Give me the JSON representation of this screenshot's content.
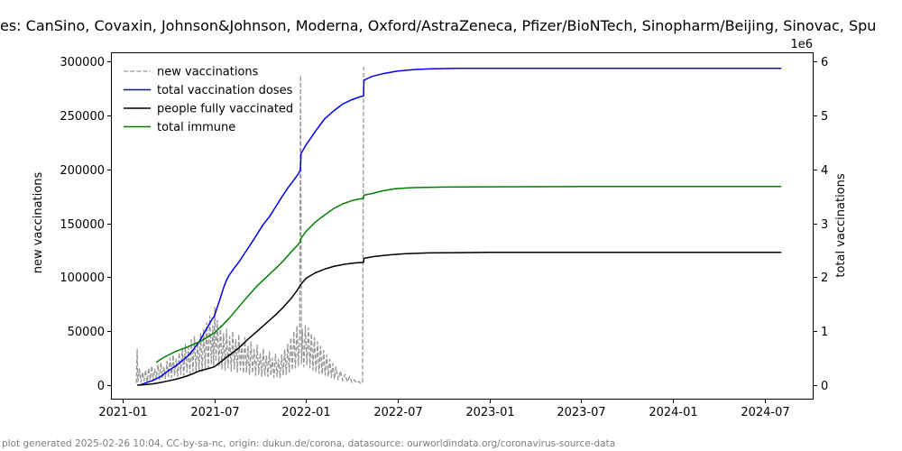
{
  "title_visible": "es: CanSino, Covaxin, Johnson&Johnson, Moderna, Oxford/AstraZeneca, Pfizer/BioNTech, Sinopharm/Beijing, Sinovac, Spu",
  "footer": "plot generated 2025-02-26 10:04, CC-by-sa-nc, origin: dukun.de/corona, datasource: ourworldindata.org/coronavirus-source-data",
  "chart_data": {
    "type": "line",
    "x_axis": {
      "unit": "months since 2021-01-01",
      "tick_months": [
        0,
        6,
        12,
        18,
        24,
        30,
        36,
        42
      ],
      "tick_labels": [
        "2021-01",
        "2021-07",
        "2022-01",
        "2022-07",
        "2023-01",
        "2023-07",
        "2024-01",
        "2024-07"
      ],
      "range_months": [
        -0.77,
        45.24
      ]
    },
    "y_left": {
      "label": "new vaccinations",
      "tick_values": [
        0,
        50000,
        100000,
        150000,
        200000,
        250000,
        300000
      ],
      "tick_labels": [
        "0",
        "50000",
        "100000",
        "150000",
        "200000",
        "250000",
        "300000"
      ],
      "range": [
        -13370,
        308350
      ],
      "grid": false
    },
    "y_right": {
      "label": "total vaccinations",
      "offset_text": "1e6",
      "tick_values": [
        0,
        1000000,
        2000000,
        3000000,
        4000000,
        5000000,
        6000000
      ],
      "tick_labels": [
        "0",
        "1",
        "2",
        "3",
        "4",
        "5",
        "6"
      ],
      "range": [
        -267000,
        6168000
      ]
    },
    "legend": {
      "position": "upper left",
      "frame": false
    },
    "series": [
      {
        "name": "new vaccinations",
        "axis": "left",
        "color": "#969696",
        "dashed": true,
        "linewidth": 1.3,
        "points": [
          [
            0.9,
            2000
          ],
          [
            0.95,
            33000
          ],
          [
            1.0,
            3000
          ],
          [
            1.1,
            15000
          ],
          [
            1.2,
            2500
          ],
          [
            1.3,
            12000
          ],
          [
            1.4,
            4000
          ],
          [
            1.5,
            14000
          ],
          [
            1.6,
            3000
          ],
          [
            1.7,
            16000
          ],
          [
            1.8,
            5000
          ],
          [
            1.9,
            18000
          ],
          [
            2.0,
            4000
          ],
          [
            2.1,
            15000
          ],
          [
            2.2,
            6000
          ],
          [
            2.3,
            19000
          ],
          [
            2.4,
            5000
          ],
          [
            2.5,
            21000
          ],
          [
            2.6,
            7000
          ],
          [
            2.7,
            17000
          ],
          [
            2.8,
            6000
          ],
          [
            2.9,
            22000
          ],
          [
            3.0,
            8000
          ],
          [
            3.1,
            25000
          ],
          [
            3.2,
            7000
          ],
          [
            3.3,
            28000
          ],
          [
            3.4,
            9000
          ],
          [
            3.5,
            24000
          ],
          [
            3.6,
            8000
          ],
          [
            3.7,
            30000
          ],
          [
            3.8,
            10000
          ],
          [
            3.9,
            34000
          ],
          [
            4.0,
            9000
          ],
          [
            4.1,
            38000
          ],
          [
            4.2,
            12000
          ],
          [
            4.3,
            35000
          ],
          [
            4.4,
            11000
          ],
          [
            4.5,
            42000
          ],
          [
            4.6,
            13000
          ],
          [
            4.7,
            45000
          ],
          [
            4.8,
            12000
          ],
          [
            4.9,
            40000
          ],
          [
            5.0,
            14000
          ],
          [
            5.1,
            48000
          ],
          [
            5.2,
            13000
          ],
          [
            5.3,
            52000
          ],
          [
            5.4,
            15000
          ],
          [
            5.5,
            58000
          ],
          [
            5.6,
            16000
          ],
          [
            5.7,
            64000
          ],
          [
            5.8,
            20000
          ],
          [
            5.9,
            55000
          ],
          [
            5.95,
            18000
          ],
          [
            6.03,
            72000
          ],
          [
            6.1,
            22000
          ],
          [
            6.2,
            60000
          ],
          [
            6.3,
            18000
          ],
          [
            6.4,
            55000
          ],
          [
            6.5,
            15000
          ],
          [
            6.6,
            48000
          ],
          [
            6.7,
            14000
          ],
          [
            6.8,
            52000
          ],
          [
            6.9,
            16000
          ],
          [
            7.0,
            45000
          ],
          [
            7.1,
            13000
          ],
          [
            7.2,
            50000
          ],
          [
            7.3,
            15000
          ],
          [
            7.4,
            42000
          ],
          [
            7.5,
            12000
          ],
          [
            7.6,
            47000
          ],
          [
            7.7,
            14000
          ],
          [
            7.8,
            38000
          ],
          [
            7.9,
            11000
          ],
          [
            8.0,
            44000
          ],
          [
            8.1,
            12000
          ],
          [
            8.2,
            36000
          ],
          [
            8.3,
            10000
          ],
          [
            8.4,
            40000
          ],
          [
            8.5,
            11000
          ],
          [
            8.6,
            33000
          ],
          [
            8.7,
            9000
          ],
          [
            8.8,
            37000
          ],
          [
            8.9,
            10000
          ],
          [
            9.0,
            30000
          ],
          [
            9.1,
            8000
          ],
          [
            9.2,
            34000
          ],
          [
            9.3,
            9000
          ],
          [
            9.4,
            27000
          ],
          [
            9.5,
            8000
          ],
          [
            9.6,
            31000
          ],
          [
            9.7,
            9000
          ],
          [
            9.8,
            25000
          ],
          [
            9.9,
            7000
          ],
          [
            10.0,
            29000
          ],
          [
            10.1,
            8000
          ],
          [
            10.2,
            24000
          ],
          [
            10.3,
            7000
          ],
          [
            10.4,
            28000
          ],
          [
            10.5,
            9000
          ],
          [
            10.6,
            33000
          ],
          [
            10.7,
            10000
          ],
          [
            10.8,
            38000
          ],
          [
            10.9,
            12000
          ],
          [
            11.0,
            44000
          ],
          [
            11.1,
            14000
          ],
          [
            11.2,
            50000
          ],
          [
            11.3,
            16000
          ],
          [
            11.4,
            55000
          ],
          [
            11.5,
            18000
          ],
          [
            11.58,
            45000
          ],
          [
            11.64,
            287000
          ],
          [
            11.7,
            20000
          ],
          [
            11.75,
            52000
          ],
          [
            11.85,
            17000
          ],
          [
            11.95,
            55000
          ],
          [
            12.05,
            19000
          ],
          [
            12.15,
            53000
          ],
          [
            12.25,
            16000
          ],
          [
            12.35,
            48000
          ],
          [
            12.45,
            14000
          ],
          [
            12.55,
            44000
          ],
          [
            12.65,
            12000
          ],
          [
            12.75,
            40000
          ],
          [
            12.85,
            11000
          ],
          [
            12.95,
            36000
          ],
          [
            13.05,
            10000
          ],
          [
            13.15,
            32000
          ],
          [
            13.25,
            9000
          ],
          [
            13.35,
            28000
          ],
          [
            13.45,
            8000
          ],
          [
            13.55,
            24000
          ],
          [
            13.65,
            7000
          ],
          [
            13.75,
            20000
          ],
          [
            13.85,
            6000
          ],
          [
            13.95,
            17000
          ],
          [
            14.1,
            5000
          ],
          [
            14.25,
            13000
          ],
          [
            14.4,
            4000
          ],
          [
            14.55,
            10000
          ],
          [
            14.7,
            3000
          ],
          [
            14.85,
            8000
          ],
          [
            15.0,
            2500
          ],
          [
            15.15,
            5000
          ],
          [
            15.3,
            2000
          ],
          [
            15.45,
            3500
          ],
          [
            15.6,
            1500
          ],
          [
            15.7,
            2500
          ],
          [
            15.77,
            295000
          ]
        ]
      },
      {
        "name": "total vaccination doses",
        "axis": "right",
        "color": "#0000ee",
        "dashed": false,
        "linewidth": 1.5,
        "points": [
          [
            1.12,
            0
          ],
          [
            1.5,
            40000
          ],
          [
            2.0,
            90000
          ],
          [
            2.5,
            160000
          ],
          [
            3.0,
            270000
          ],
          [
            3.5,
            360000
          ],
          [
            4.0,
            480000
          ],
          [
            4.3,
            550000
          ],
          [
            4.6,
            650000
          ],
          [
            5.0,
            800000
          ],
          [
            5.3,
            950000
          ],
          [
            5.6,
            1100000
          ],
          [
            5.8,
            1200000
          ],
          [
            6.0,
            1280000
          ],
          [
            6.2,
            1450000
          ],
          [
            6.4,
            1620000
          ],
          [
            6.6,
            1800000
          ],
          [
            6.8,
            1950000
          ],
          [
            7.0,
            2050000
          ],
          [
            7.3,
            2170000
          ],
          [
            7.6,
            2280000
          ],
          [
            8.0,
            2450000
          ],
          [
            8.4,
            2620000
          ],
          [
            8.8,
            2800000
          ],
          [
            9.2,
            2980000
          ],
          [
            9.6,
            3120000
          ],
          [
            10.0,
            3300000
          ],
          [
            10.4,
            3480000
          ],
          [
            10.8,
            3650000
          ],
          [
            11.2,
            3800000
          ],
          [
            11.5,
            3920000
          ],
          [
            11.63,
            3990000
          ],
          [
            11.67,
            4290000
          ],
          [
            12.0,
            4450000
          ],
          [
            12.6,
            4700000
          ],
          [
            13.2,
            4930000
          ],
          [
            13.8,
            5080000
          ],
          [
            14.4,
            5210000
          ],
          [
            15.0,
            5290000
          ],
          [
            15.5,
            5340000
          ],
          [
            15.76,
            5360000
          ],
          [
            15.79,
            5650000
          ],
          [
            16.3,
            5720000
          ],
          [
            17.0,
            5770000
          ],
          [
            18.0,
            5820000
          ],
          [
            19.0,
            5845000
          ],
          [
            20.0,
            5860000
          ],
          [
            22.0,
            5870000
          ],
          [
            26.0,
            5870000
          ],
          [
            32.0,
            5870000
          ],
          [
            38.0,
            5870000
          ],
          [
            43.1,
            5870000
          ]
        ]
      },
      {
        "name": "people fully vaccinated",
        "axis": "right",
        "color": "#000000",
        "dashed": false,
        "linewidth": 1.5,
        "points": [
          [
            0.95,
            0
          ],
          [
            1.5,
            10000
          ],
          [
            2.0,
            25000
          ],
          [
            2.5,
            50000
          ],
          [
            3.0,
            80000
          ],
          [
            3.5,
            110000
          ],
          [
            4.0,
            150000
          ],
          [
            4.5,
            200000
          ],
          [
            5.0,
            260000
          ],
          [
            5.5,
            300000
          ],
          [
            6.0,
            340000
          ],
          [
            6.5,
            450000
          ],
          [
            7.0,
            560000
          ],
          [
            7.6,
            690000
          ],
          [
            8.2,
            850000
          ],
          [
            8.8,
            1000000
          ],
          [
            9.4,
            1150000
          ],
          [
            10.0,
            1300000
          ],
          [
            10.5,
            1440000
          ],
          [
            11.0,
            1600000
          ],
          [
            11.4,
            1750000
          ],
          [
            11.7,
            1880000
          ],
          [
            12.0,
            1980000
          ],
          [
            12.6,
            2080000
          ],
          [
            13.2,
            2150000
          ],
          [
            13.8,
            2200000
          ],
          [
            14.5,
            2240000
          ],
          [
            15.2,
            2265000
          ],
          [
            15.76,
            2275000
          ],
          [
            15.79,
            2350000
          ],
          [
            16.5,
            2385000
          ],
          [
            17.5,
            2415000
          ],
          [
            18.5,
            2435000
          ],
          [
            20.0,
            2450000
          ],
          [
            22.0,
            2455000
          ],
          [
            24.0,
            2460000
          ],
          [
            30.0,
            2460000
          ],
          [
            38.0,
            2460000
          ],
          [
            43.1,
            2460000
          ]
        ]
      },
      {
        "name": "total immune",
        "axis": "right",
        "color": "#008000",
        "dashed": false,
        "linewidth": 1.5,
        "points": [
          [
            2.19,
            420000
          ],
          [
            2.6,
            500000
          ],
          [
            3.0,
            560000
          ],
          [
            3.5,
            630000
          ],
          [
            4.0,
            680000
          ],
          [
            4.5,
            740000
          ],
          [
            5.0,
            800000
          ],
          [
            5.5,
            880000
          ],
          [
            6.0,
            970000
          ],
          [
            6.5,
            1100000
          ],
          [
            7.0,
            1250000
          ],
          [
            7.6,
            1450000
          ],
          [
            8.2,
            1650000
          ],
          [
            8.8,
            1840000
          ],
          [
            9.4,
            2000000
          ],
          [
            10.0,
            2160000
          ],
          [
            10.5,
            2300000
          ],
          [
            11.0,
            2460000
          ],
          [
            11.4,
            2580000
          ],
          [
            11.63,
            2660000
          ],
          [
            11.67,
            2720000
          ],
          [
            12.0,
            2850000
          ],
          [
            12.6,
            3020000
          ],
          [
            13.2,
            3150000
          ],
          [
            13.8,
            3270000
          ],
          [
            14.4,
            3360000
          ],
          [
            15.0,
            3420000
          ],
          [
            15.5,
            3450000
          ],
          [
            15.76,
            3460000
          ],
          [
            15.79,
            3520000
          ],
          [
            16.3,
            3550000
          ],
          [
            17.0,
            3600000
          ],
          [
            17.8,
            3640000
          ],
          [
            19.0,
            3660000
          ],
          [
            21.0,
            3670000
          ],
          [
            24.0,
            3675000
          ],
          [
            30.0,
            3680000
          ],
          [
            38.0,
            3680000
          ],
          [
            43.1,
            3680000
          ]
        ]
      }
    ]
  }
}
